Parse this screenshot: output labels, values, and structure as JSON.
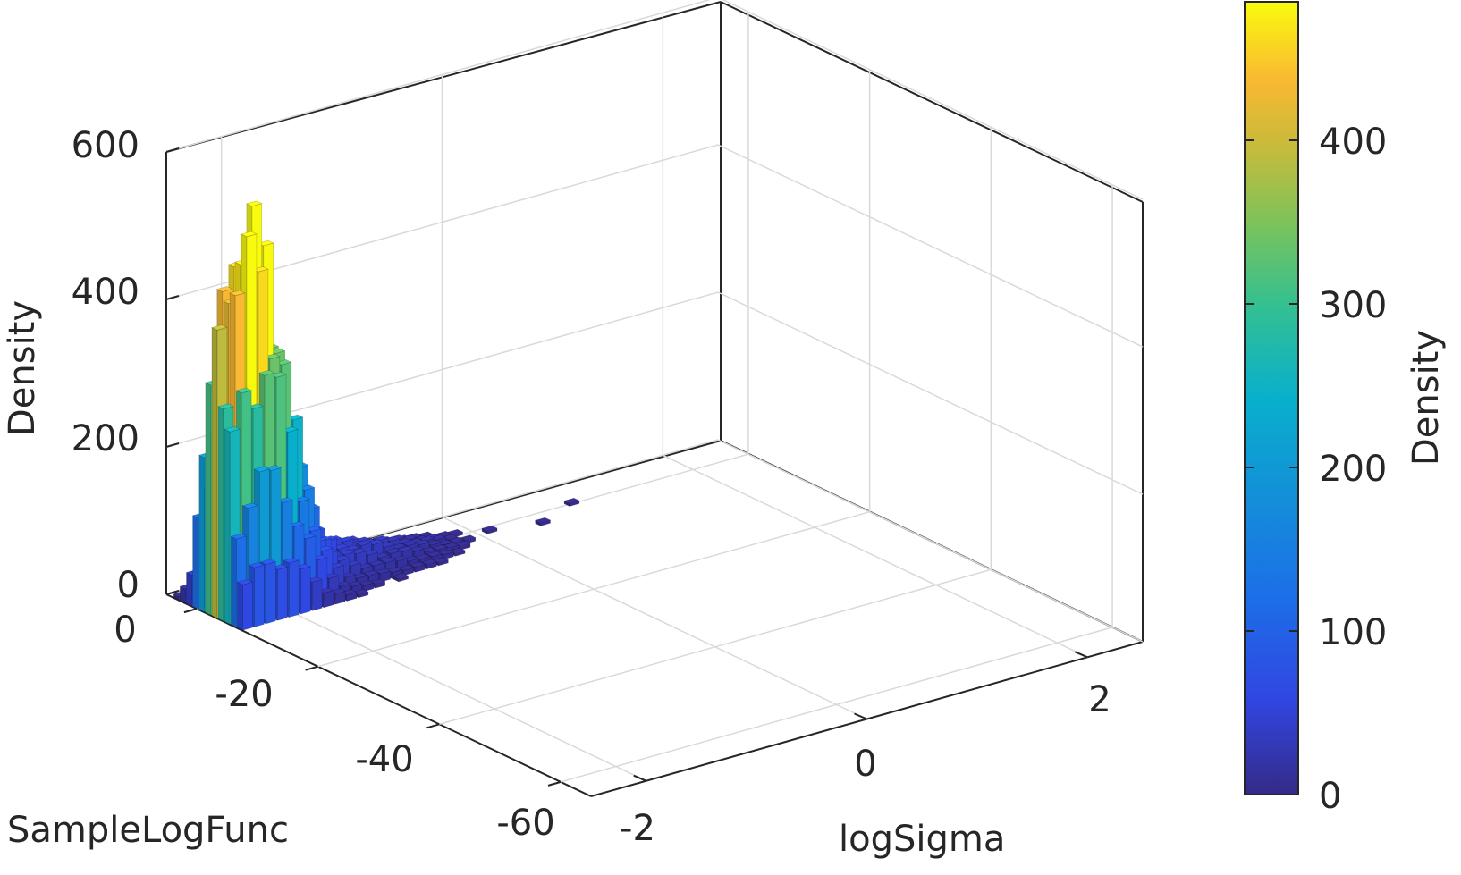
{
  "chart_data": {
    "type": "3d-bar-histogram",
    "zlabel": "Density",
    "xlabel": "logSigma",
    "ylabel": "SampleLogFunc",
    "x_ticks": [
      "-2",
      "0",
      "2"
    ],
    "x_tick_values": [
      -2,
      0,
      2
    ],
    "xlim": [
      -2.5,
      2.5
    ],
    "y_ticks": [
      "0",
      "-20",
      "-40",
      "-60"
    ],
    "y_tick_values": [
      0,
      -20,
      -40,
      -60
    ],
    "ylim": [
      -65,
      5
    ],
    "z_ticks": [
      "0",
      "200",
      "400",
      "600"
    ],
    "z_tick_values": [
      0,
      200,
      400,
      600
    ],
    "zlim": [
      0,
      600
    ],
    "grid": true,
    "colormap": "parula",
    "colorbar": {
      "label": "Density",
      "ticks": [
        "0",
        "100",
        "200",
        "300",
        "400"
      ],
      "tick_values": [
        0,
        100,
        200,
        300,
        400
      ],
      "range": [
        0,
        485
      ]
    },
    "peak": {
      "logSigma": -2.2,
      "SampleLogFunc": -3,
      "density": 485
    },
    "note": "Bivariate histogram; mass concentrated near logSigma ≈ -2.2 and SampleLogFunc between 0 and -5, with a long low tail extending toward logSigma ≈ 2."
  }
}
